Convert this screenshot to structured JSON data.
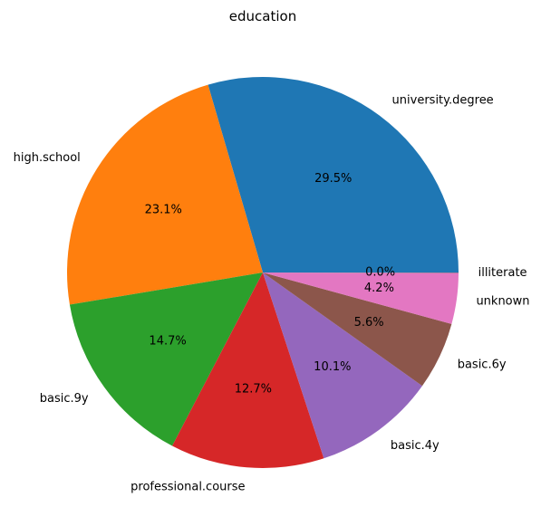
{
  "chart_data": {
    "type": "pie",
    "title": "education",
    "start_angle_deg": 0,
    "direction": "counterclockwise",
    "slices": [
      {
        "label": "university.degree",
        "value": 29.5,
        "pct_label": "29.5%",
        "color": "#1f77b4"
      },
      {
        "label": "high.school",
        "value": 23.1,
        "pct_label": "23.1%",
        "color": "#ff7f0e"
      },
      {
        "label": "basic.9y",
        "value": 14.7,
        "pct_label": "14.7%",
        "color": "#2ca02c"
      },
      {
        "label": "professional.course",
        "value": 12.7,
        "pct_label": "12.7%",
        "color": "#d62728"
      },
      {
        "label": "basic.4y",
        "value": 10.1,
        "pct_label": "10.1%",
        "color": "#9467bd"
      },
      {
        "label": "basic.6y",
        "value": 5.6,
        "pct_label": "5.6%",
        "color": "#8c564b"
      },
      {
        "label": "unknown",
        "value": 4.2,
        "pct_label": "4.2%",
        "color": "#e377c2"
      },
      {
        "label": "illiterate",
        "value": 0.04,
        "pct_label": "0.0%",
        "color": "#7f7f7f"
      }
    ]
  }
}
